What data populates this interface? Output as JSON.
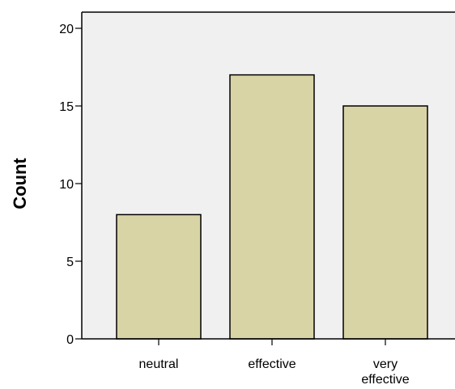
{
  "chart_data": {
    "type": "bar",
    "categories": [
      [
        "neutral"
      ],
      [
        "effective"
      ],
      [
        "very",
        "effective"
      ]
    ],
    "values": [
      8,
      17,
      15
    ],
    "xlabel": "",
    "ylabel": "Count",
    "ylim": [
      0,
      20
    ],
    "yticks": [
      0,
      5,
      10,
      15,
      20
    ],
    "grid": false,
    "colors": {
      "plot_background": "#f0f0f0",
      "bar_fill": "#d9d4a6",
      "bar_stroke": "#000000"
    }
  }
}
